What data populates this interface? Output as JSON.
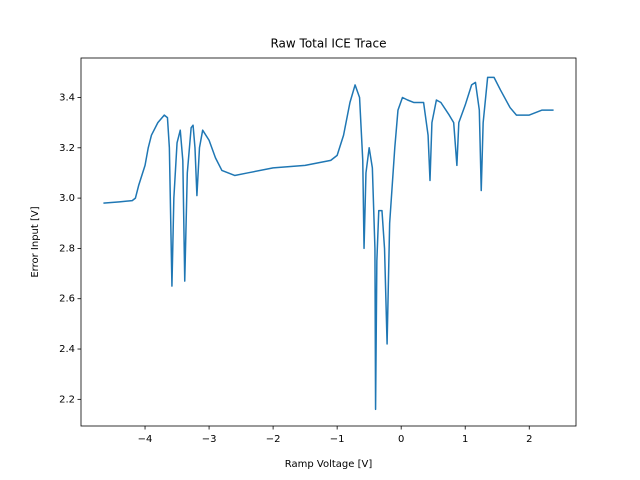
{
  "chart_data": {
    "type": "line",
    "title": "Raw Total ICE Trace",
    "x_label": "Ramp Voltage [V]",
    "y_label": "Error Input [V]",
    "x": [
      -4.65,
      -4.4,
      -4.2,
      -4.15,
      -4.1,
      -4.0,
      -3.95,
      -3.9,
      -3.8,
      -3.7,
      -3.65,
      -3.62,
      -3.58,
      -3.55,
      -3.5,
      -3.45,
      -3.41,
      -3.38,
      -3.34,
      -3.28,
      -3.25,
      -3.22,
      -3.19,
      -3.15,
      -3.1,
      -3.0,
      -2.9,
      -2.8,
      -2.6,
      -2.4,
      -2.0,
      -1.5,
      -1.1,
      -1.0,
      -0.9,
      -0.8,
      -0.72,
      -0.65,
      -0.6,
      -0.58,
      -0.55,
      -0.5,
      -0.45,
      -0.41,
      -0.4,
      -0.38,
      -0.35,
      -0.3,
      -0.26,
      -0.22,
      -0.18,
      -0.1,
      -0.05,
      0.02,
      0.1,
      0.2,
      0.35,
      0.42,
      0.45,
      0.48,
      0.55,
      0.62,
      0.75,
      0.82,
      0.87,
      0.9,
      1.0,
      1.1,
      1.16,
      1.22,
      1.25,
      1.28,
      1.35,
      1.45,
      1.55,
      1.7,
      1.8,
      2.0,
      2.2,
      2.38
    ],
    "series": [
      {
        "color": "#1f77b4",
        "values": [
          2.98,
          2.985,
          2.99,
          3.0,
          3.05,
          3.13,
          3.2,
          3.25,
          3.3,
          3.33,
          3.32,
          3.2,
          2.65,
          3.0,
          3.22,
          3.27,
          3.15,
          2.67,
          3.1,
          3.28,
          3.29,
          3.2,
          3.01,
          3.2,
          3.27,
          3.23,
          3.16,
          3.11,
          3.09,
          3.1,
          3.12,
          3.13,
          3.15,
          3.17,
          3.25,
          3.38,
          3.45,
          3.4,
          3.15,
          2.8,
          3.1,
          3.2,
          3.12,
          2.8,
          2.16,
          2.75,
          2.95,
          2.95,
          2.8,
          2.42,
          2.9,
          3.2,
          3.35,
          3.4,
          3.39,
          3.38,
          3.38,
          3.25,
          3.07,
          3.3,
          3.39,
          3.38,
          3.33,
          3.3,
          3.13,
          3.3,
          3.37,
          3.45,
          3.46,
          3.35,
          3.03,
          3.3,
          3.48,
          3.48,
          3.43,
          3.36,
          3.33,
          3.33,
          3.35,
          3.35
        ]
      }
    ],
    "xlim": [
      -5.0,
      2.73
    ],
    "ylim": [
      2.094,
      3.557
    ],
    "xticks": [
      {
        "value": -4,
        "label": "−4"
      },
      {
        "value": -3,
        "label": "−3"
      },
      {
        "value": -2,
        "label": "−2"
      },
      {
        "value": -1,
        "label": "−1"
      },
      0,
      1,
      2
    ],
    "yticks": [
      2.2,
      2.4,
      2.6,
      2.8,
      {
        "value": 3,
        "label": "3.0"
      },
      3.2,
      3.4
    ]
  }
}
